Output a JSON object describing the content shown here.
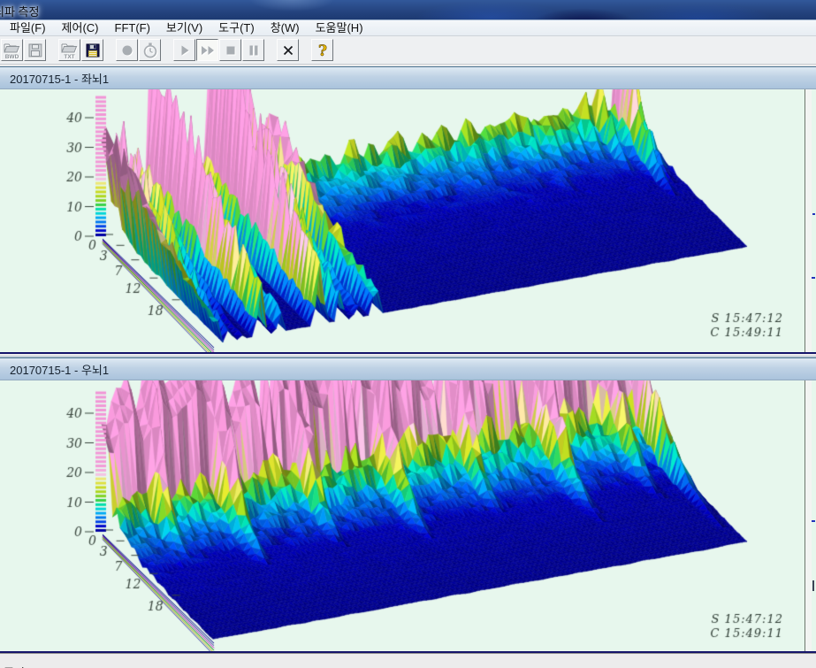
{
  "window": {
    "title": "뇌파 측정"
  },
  "menu": {
    "items": [
      {
        "id": "file",
        "label": "파일(F)"
      },
      {
        "id": "control",
        "label": "제어(C)"
      },
      {
        "id": "fft",
        "label": "FFT(F)"
      },
      {
        "id": "view",
        "label": "보기(V)"
      },
      {
        "id": "tools",
        "label": "도구(T)"
      },
      {
        "id": "window",
        "label": "창(W)"
      },
      {
        "id": "help",
        "label": "도움말(H)"
      }
    ]
  },
  "toolbar": {
    "buttons": [
      {
        "name": "open-bwd-button",
        "icon": "folder-bwd-icon",
        "label": "BWD",
        "enabled": false,
        "group_start": false
      },
      {
        "name": "save-bwd-button",
        "icon": "floppy-icon",
        "label": "",
        "enabled": false,
        "group_start": false
      },
      {
        "name": "open-txt-button",
        "icon": "folder-txt-icon",
        "label": "TXT",
        "enabled": false,
        "group_start": true
      },
      {
        "name": "save-txt-button",
        "icon": "floppy-color-icon",
        "label": "",
        "enabled": true,
        "group_start": false
      },
      {
        "name": "record-button",
        "icon": "record-icon",
        "label": "",
        "enabled": false,
        "group_start": true
      },
      {
        "name": "timer-button",
        "icon": "stopwatch-icon",
        "label": "",
        "enabled": false,
        "group_start": false
      },
      {
        "name": "play-button",
        "icon": "play-icon",
        "label": "",
        "enabled": false,
        "group_start": true
      },
      {
        "name": "fast-forward-button",
        "icon": "fast-forward-icon",
        "label": "",
        "enabled": false,
        "group_start": false,
        "pressed": true
      },
      {
        "name": "stop-button",
        "icon": "stop-icon",
        "label": "",
        "enabled": false,
        "group_start": false
      },
      {
        "name": "pause-button",
        "icon": "pause-icon",
        "label": "",
        "enabled": false,
        "group_start": false
      },
      {
        "name": "close-button",
        "icon": "close-x-icon",
        "label": "",
        "enabled": true,
        "group_start": true
      },
      {
        "name": "help-button",
        "icon": "help-icon",
        "label": "",
        "enabled": true,
        "group_start": true
      }
    ]
  },
  "panels": [
    {
      "caption": "20170715-1 - 좌뇌1"
    },
    {
      "caption": "20170715-1 - 우뇌1"
    }
  ],
  "status": {
    "text": "준비"
  },
  "chart_data": [
    {
      "type": "surface",
      "title": "20170715-1 - 좌뇌1",
      "amplitude_axis": {
        "ticks": [
          0,
          10,
          20,
          30,
          40
        ],
        "range": [
          0,
          50
        ]
      },
      "frequency_axis": {
        "ticks": [
          0,
          3,
          7,
          12,
          18
        ],
        "range": [
          0,
          30
        ]
      },
      "time_annotations": [
        "S 15:47:12",
        "C 15:49:11"
      ],
      "legend": {
        "type": "color-scale",
        "position": "left-of-amplitude-axis"
      },
      "color_scale": [
        [
          0,
          "#000090"
        ],
        [
          2,
          "#0000c8"
        ],
        [
          3.5,
          "#0040e8"
        ],
        [
          5,
          "#0078f0"
        ],
        [
          6.5,
          "#00aaf4"
        ],
        [
          8,
          "#00d8d8"
        ],
        [
          9.5,
          "#00e0a8"
        ],
        [
          11,
          "#40d040"
        ],
        [
          12.5,
          "#8cd422"
        ],
        [
          14,
          "#b4d81e"
        ],
        [
          16,
          "#d8dc28"
        ],
        [
          18,
          "#ecea70"
        ],
        [
          19.5,
          "#f4c4e4"
        ],
        [
          22,
          "#f49ad8"
        ],
        [
          60,
          "#f292d6"
        ]
      ],
      "grid": {
        "time_steps": 110,
        "freq_bins": 30
      },
      "summary": "Mostly low amplitude (<10) across 0-30 Hz; clusters of tall broadband pink spikes (>40, clipped) near the start of the recording and again at the very end; scattered green/cyan peaks (10-25) in between at low frequencies.",
      "gen": {
        "seed": 20170715,
        "T": 110,
        "F": 30,
        "e1": 9.5,
        "s1": 3.2,
        "e2": 3.0,
        "s2": 15,
        "rBase": 0.45,
        "rAmp": 1.15,
        "wall": 0,
        "band": 0,
        "spikes": [
          [
            0.004,
            0.01,
            56,
            24
          ],
          [
            0.03,
            0.009,
            48,
            20
          ],
          [
            0.057,
            0.008,
            40,
            16
          ],
          [
            0.09,
            0.012,
            58,
            26
          ],
          [
            0.125,
            0.009,
            46,
            22
          ],
          [
            0.158,
            0.008,
            38,
            13
          ],
          [
            0.2,
            0.013,
            60,
            27
          ],
          [
            0.238,
            0.011,
            54,
            23
          ],
          [
            0.27,
            0.009,
            44,
            19
          ],
          [
            0.305,
            0.011,
            52,
            23
          ],
          [
            0.34,
            0.007,
            28,
            7
          ],
          [
            0.375,
            0.006,
            20,
            5
          ],
          [
            0.45,
            0.005,
            13,
            4
          ],
          [
            0.53,
            0.005,
            12,
            3
          ],
          [
            0.61,
            0.005,
            13,
            4
          ],
          [
            0.68,
            0.005,
            15,
            4
          ],
          [
            0.74,
            0.006,
            17,
            4
          ],
          [
            0.79,
            0.006,
            19,
            4
          ],
          [
            0.83,
            0.007,
            21,
            5
          ],
          [
            0.87,
            0.006,
            24,
            5
          ],
          [
            0.9,
            0.006,
            18,
            4
          ],
          [
            0.93,
            0.008,
            32,
            6
          ],
          [
            0.962,
            0.01,
            50,
            8
          ],
          [
            0.985,
            0.008,
            44,
            7
          ]
        ]
      }
    },
    {
      "type": "surface",
      "title": "20170715-1 - 우뇌1",
      "amplitude_axis": {
        "ticks": [
          0,
          10,
          20,
          30,
          40
        ],
        "range": [
          0,
          50
        ]
      },
      "frequency_axis": {
        "ticks": [
          0,
          3,
          7,
          12,
          18
        ],
        "range": [
          0,
          30
        ]
      },
      "time_annotations": [
        "S 15:47:12",
        "C 15:49:11"
      ],
      "legend": {
        "type": "color-scale",
        "position": "left-of-amplitude-axis"
      },
      "color_scale": [
        [
          0,
          "#000090"
        ],
        [
          2,
          "#0000c8"
        ],
        [
          3.5,
          "#0040e8"
        ],
        [
          5,
          "#0078f0"
        ],
        [
          6.5,
          "#00aaf4"
        ],
        [
          8,
          "#00d8d8"
        ],
        [
          9.5,
          "#00e0a8"
        ],
        [
          11,
          "#40d040"
        ],
        [
          12.5,
          "#8cd422"
        ],
        [
          14,
          "#b4d81e"
        ],
        [
          16,
          "#d8dc28"
        ],
        [
          18,
          "#ecea70"
        ],
        [
          19.5,
          "#f4c4e4"
        ],
        [
          22,
          "#f49ad8"
        ],
        [
          60,
          "#f292d6"
        ]
      ],
      "grid": {
        "time_steps": 110,
        "freq_bins": 30
      },
      "summary": "Sustained high-amplitude wall (>40, clipped at top) at 0-3 Hz across nearly the entire recording; elevated yellow/green 3-10 Hz band growing toward the end; amplitude decays to deep blue by 15-30 Hz.",
      "gen": {
        "seed": 20170716,
        "T": 110,
        "F": 30,
        "e1": 13,
        "s1": 3.6,
        "e2": 3.4,
        "s2": 15,
        "rBase": 0.5,
        "rAmp": 1.1,
        "wall": 46,
        "band": 13,
        "spikes": [
          [
            0.08,
            0.02,
            62,
            6
          ],
          [
            0.2,
            0.025,
            58,
            8
          ],
          [
            0.35,
            0.02,
            64,
            7
          ],
          [
            0.5,
            0.025,
            60,
            8
          ],
          [
            0.65,
            0.02,
            62,
            7
          ],
          [
            0.8,
            0.025,
            58,
            9
          ],
          [
            0.93,
            0.02,
            60,
            8
          ],
          [
            0.985,
            0.012,
            50,
            12
          ]
        ]
      }
    }
  ]
}
